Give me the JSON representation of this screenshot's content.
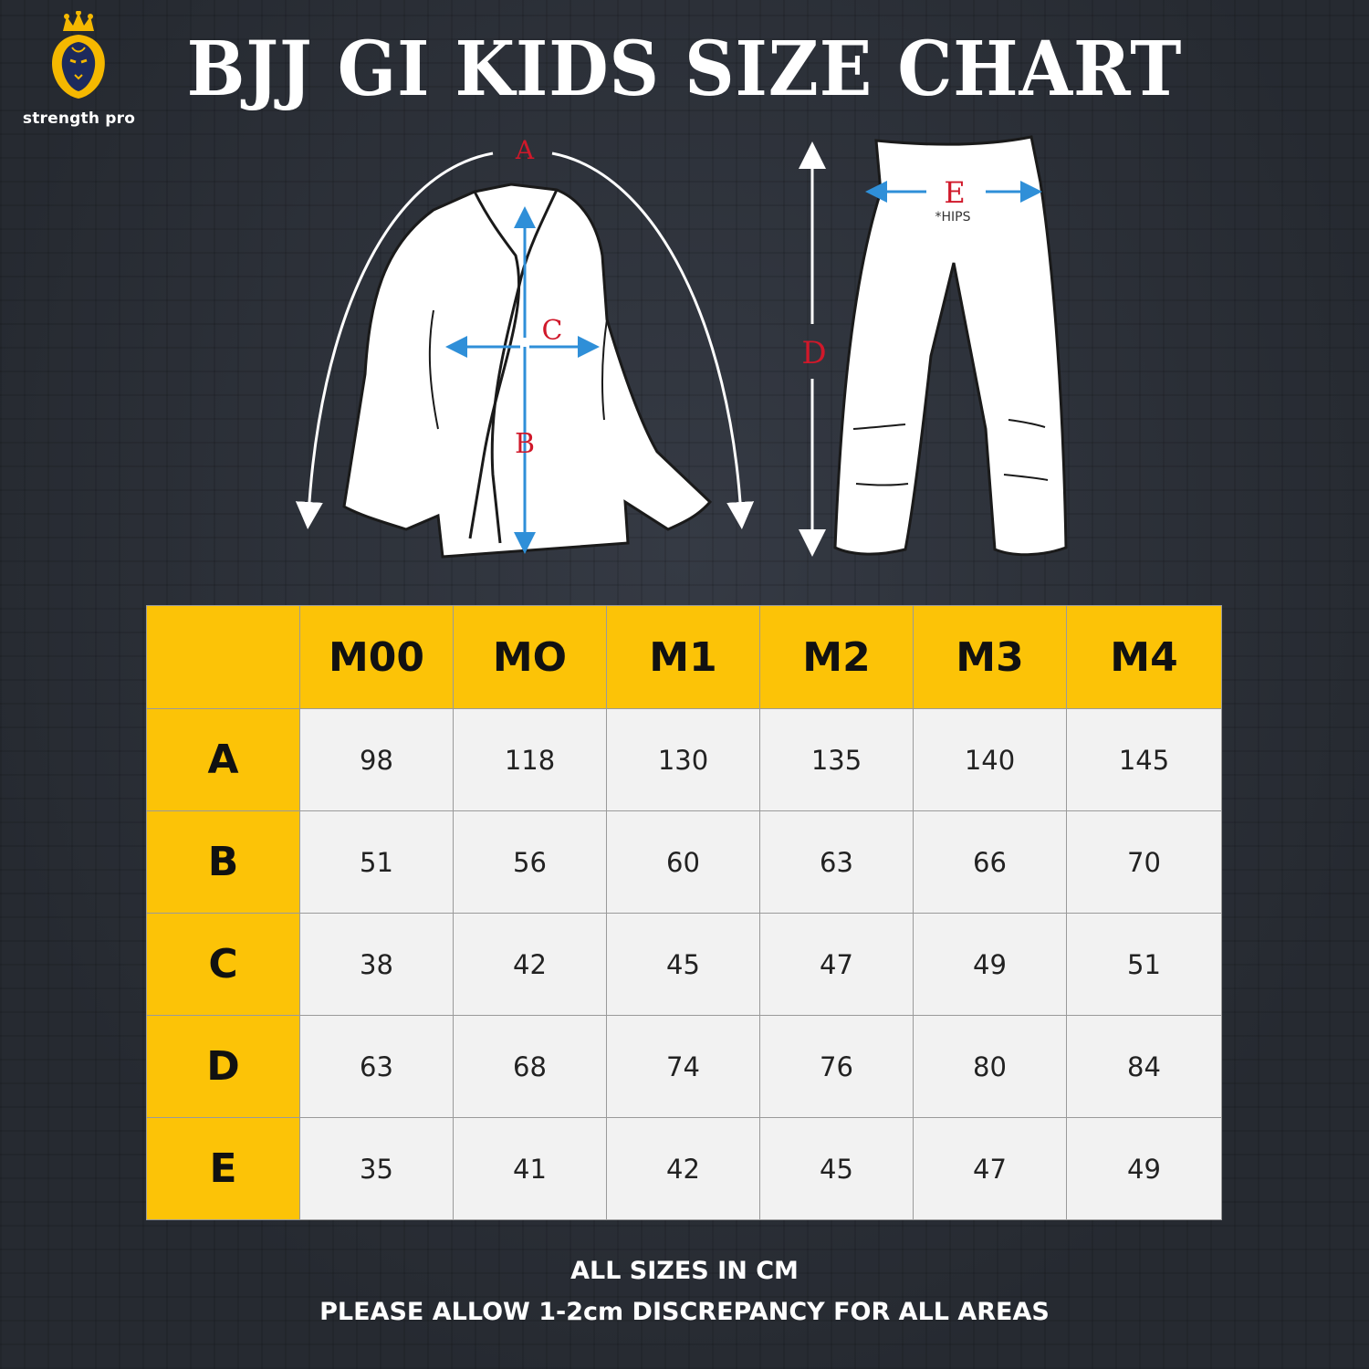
{
  "brand": {
    "name": "strength pro",
    "colors": {
      "gold": "#fcc307",
      "navy": "#1d2a5c",
      "background": "#2b2f37"
    },
    "icon": "lion-crown-icon"
  },
  "title": "BJJ GI KIDS SIZE CHART",
  "illustration": {
    "labels": {
      "a": "A",
      "b": "B",
      "c": "C",
      "d": "D",
      "e": "E",
      "hips": "*HIPS"
    }
  },
  "table": {
    "columns": [
      "M00",
      "MO",
      "M1",
      "M2",
      "M3",
      "M4"
    ],
    "rows": [
      {
        "label": "A",
        "values": [
          "98",
          "118",
          "130",
          "135",
          "140",
          "145"
        ]
      },
      {
        "label": "B",
        "values": [
          "51",
          "56",
          "60",
          "63",
          "66",
          "70"
        ]
      },
      {
        "label": "C",
        "values": [
          "38",
          "42",
          "45",
          "47",
          "49",
          "51"
        ]
      },
      {
        "label": "D",
        "values": [
          "63",
          "68",
          "74",
          "76",
          "80",
          "84"
        ]
      },
      {
        "label": "E",
        "values": [
          "35",
          "41",
          "42",
          "45",
          "47",
          "49"
        ]
      }
    ]
  },
  "notes": {
    "line1": "ALL SIZES IN CM",
    "line2": "PLEASE ALLOW 1-2cm DISCREPANCY FOR ALL AREAS"
  }
}
